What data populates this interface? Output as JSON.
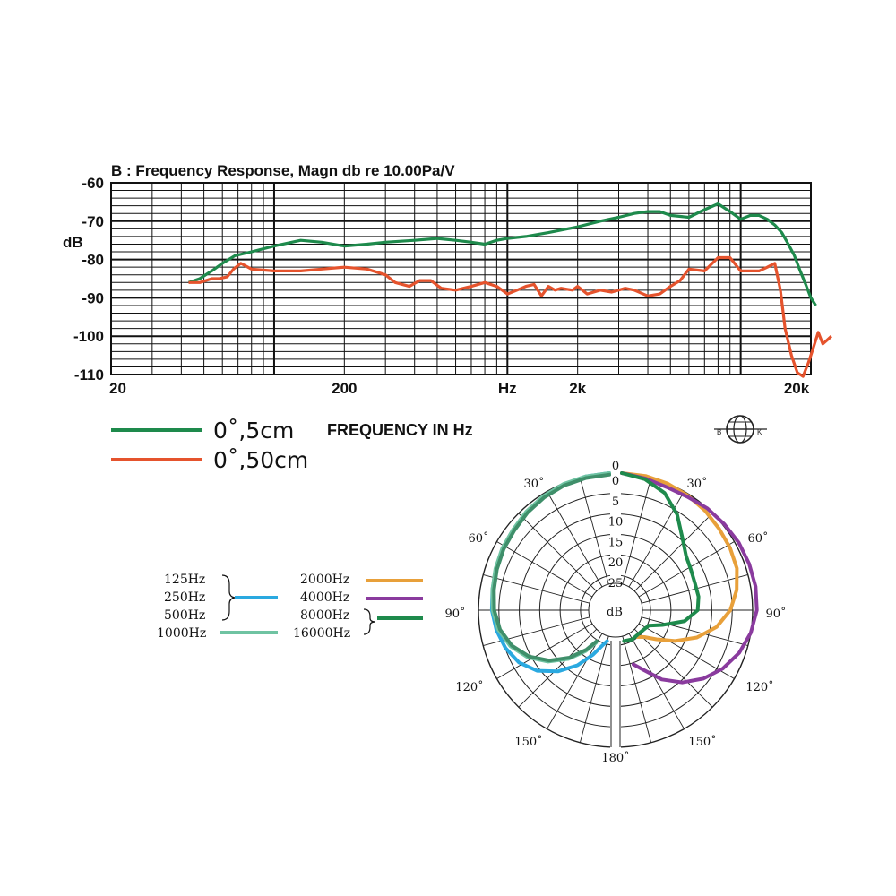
{
  "chart_data": [
    {
      "type": "line",
      "title": "B : Frequency Response, Magn db re 10.00Pa/V",
      "ylabel": "dB",
      "xlabel": "Hz",
      "xscale": "log",
      "xlim": [
        20,
        20000
      ],
      "ylim": [
        -110,
        -60
      ],
      "yticks": [
        "-60",
        "-70",
        "-80",
        "-90",
        "-100",
        "-110"
      ],
      "xticks": [
        {
          "label": "20",
          "value": 20
        },
        {
          "label": "200",
          "value": 200
        },
        {
          "label": "Hz",
          "value": 1000
        },
        {
          "label": "2k",
          "value": 2000
        },
        {
          "label": "20k",
          "value": 20000
        }
      ],
      "axis_note": "FREQUENCY IN Hz",
      "grid": true,
      "series": [
        {
          "name": "0˚,5cm",
          "color": "#1e8a4c",
          "points": [
            [
              43,
              -86
            ],
            [
              48,
              -85
            ],
            [
              54,
              -83
            ],
            [
              60,
              -81
            ],
            [
              68,
              -79
            ],
            [
              80,
              -78
            ],
            [
              100,
              -76.5
            ],
            [
              130,
              -75
            ],
            [
              160,
              -75.5
            ],
            [
              200,
              -76.5
            ],
            [
              250,
              -76
            ],
            [
              300,
              -75.5
            ],
            [
              400,
              -75
            ],
            [
              500,
              -74.5
            ],
            [
              600,
              -75
            ],
            [
              700,
              -75.5
            ],
            [
              800,
              -76
            ],
            [
              900,
              -75
            ],
            [
              1000,
              -74.5
            ],
            [
              1200,
              -74
            ],
            [
              1500,
              -73
            ],
            [
              2000,
              -71.5
            ],
            [
              2500,
              -70
            ],
            [
              3000,
              -69
            ],
            [
              3500,
              -68
            ],
            [
              4000,
              -67.5
            ],
            [
              4500,
              -67.5
            ],
            [
              5000,
              -68.5
            ],
            [
              6000,
              -69
            ],
            [
              7000,
              -67
            ],
            [
              8000,
              -65.5
            ],
            [
              9000,
              -67.5
            ],
            [
              10000,
              -69.5
            ],
            [
              11000,
              -68.5
            ],
            [
              12000,
              -68.5
            ],
            [
              13000,
              -69.5
            ],
            [
              14000,
              -71
            ],
            [
              15000,
              -73
            ],
            [
              16000,
              -76
            ],
            [
              17000,
              -79
            ],
            [
              18000,
              -83
            ],
            [
              19000,
              -86.5
            ],
            [
              20000,
              -90
            ],
            [
              21000,
              -92
            ]
          ]
        },
        {
          "name": "0˚,50cm",
          "color": "#e5532d",
          "points": [
            [
              43,
              -86
            ],
            [
              48,
              -86
            ],
            [
              54,
              -85
            ],
            [
              58,
              -85
            ],
            [
              63,
              -84.5
            ],
            [
              67,
              -82.5
            ],
            [
              72,
              -81
            ],
            [
              80,
              -82.5
            ],
            [
              100,
              -83
            ],
            [
              130,
              -83
            ],
            [
              160,
              -82.5
            ],
            [
              200,
              -82
            ],
            [
              250,
              -82.5
            ],
            [
              300,
              -84
            ],
            [
              330,
              -86
            ],
            [
              380,
              -87
            ],
            [
              420,
              -85.5
            ],
            [
              470,
              -85.5
            ],
            [
              520,
              -87.5
            ],
            [
              600,
              -88
            ],
            [
              700,
              -87
            ],
            [
              800,
              -86
            ],
            [
              900,
              -87
            ],
            [
              1000,
              -89
            ],
            [
              1100,
              -88
            ],
            [
              1200,
              -87
            ],
            [
              1300,
              -86.5
            ],
            [
              1400,
              -89.5
            ],
            [
              1500,
              -87
            ],
            [
              1600,
              -88
            ],
            [
              1700,
              -87.5
            ],
            [
              1900,
              -88
            ],
            [
              2000,
              -87
            ],
            [
              2200,
              -89
            ],
            [
              2500,
              -88
            ],
            [
              2800,
              -88.5
            ],
            [
              3200,
              -87.5
            ],
            [
              3500,
              -88
            ],
            [
              4000,
              -89.5
            ],
            [
              4500,
              -89
            ],
            [
              5000,
              -87
            ],
            [
              5500,
              -85.5
            ],
            [
              6000,
              -82.5
            ],
            [
              7000,
              -83
            ],
            [
              8000,
              -79.5
            ],
            [
              9000,
              -79.5
            ],
            [
              10000,
              -83
            ],
            [
              11000,
              -83
            ],
            [
              12000,
              -83
            ],
            [
              13000,
              -82
            ],
            [
              14000,
              -81
            ],
            [
              14800,
              -88
            ],
            [
              15500,
              -98
            ],
            [
              16500,
              -105
            ],
            [
              17500,
              -109.5
            ],
            [
              18500,
              -110.5
            ],
            [
              19500,
              -107
            ],
            [
              20500,
              -103
            ],
            [
              21500,
              -99
            ],
            [
              22500,
              -102
            ],
            [
              23500,
              -101
            ],
            [
              24500,
              -100
            ]
          ]
        }
      ]
    },
    {
      "type": "polar",
      "rlabel": "dB",
      "rings": [
        "0",
        "5",
        "10",
        "15",
        "20",
        "25"
      ],
      "angle_labels": [
        "0",
        "30˚",
        "60˚",
        "90˚",
        "120˚",
        "150˚",
        "180˚"
      ],
      "series": [
        {
          "name": "125Hz",
          "group": "125Hz 250Hz 500Hz",
          "color": "#2aa9e0",
          "points": [
            [
              0,
              0
            ],
            [
              10,
              0.3
            ],
            [
              20,
              0.8
            ],
            [
              30,
              1.5
            ],
            [
              40,
              2.2
            ],
            [
              50,
              3
            ],
            [
              60,
              3.5
            ],
            [
              70,
              4
            ],
            [
              80,
              4.5
            ],
            [
              90,
              4.8
            ],
            [
              100,
              5.5
            ],
            [
              110,
              6.5
            ],
            [
              120,
              8
            ],
            [
              130,
              10.5
            ],
            [
              140,
              14
            ],
            [
              150,
              18
            ],
            [
              160,
              22
            ],
            [
              170,
              25
            ],
            [
              176,
              26
            ]
          ]
        },
        {
          "name": "1000Hz",
          "color": "#6fc3a2",
          "points": [
            [
              0,
              0
            ],
            [
              10,
              0.3
            ],
            [
              20,
              0.7
            ],
            [
              30,
              1.3
            ],
            [
              40,
              2
            ],
            [
              50,
              2.8
            ],
            [
              60,
              3.3
            ],
            [
              70,
              3.9
            ],
            [
              80,
              4.5
            ],
            [
              90,
              5
            ],
            [
              100,
              6
            ],
            [
              110,
              7.8
            ],
            [
              120,
              10.5
            ],
            [
              130,
              14
            ],
            [
              140,
              18
            ],
            [
              150,
              22
            ],
            [
              158,
              25
            ]
          ]
        },
        {
          "name": "2000Hz",
          "color": "#e8a03a",
          "points": [
            [
              0,
              0
            ],
            [
              10,
              0.2
            ],
            [
              20,
              0.6
            ],
            [
              30,
              1.2
            ],
            [
              40,
              1.8
            ],
            [
              50,
              2.5
            ],
            [
              60,
              3
            ],
            [
              70,
              3.6
            ],
            [
              80,
              5
            ],
            [
              90,
              7
            ],
            [
              100,
              10
            ],
            [
              110,
              14
            ],
            [
              120,
              18.5
            ],
            [
              130,
              22.5
            ],
            [
              140,
              25
            ],
            [
              150,
              26
            ]
          ]
        },
        {
          "name": "4000Hz",
          "color": "#8a3b9e",
          "points": [
            [
              0,
              0
            ],
            [
              10,
              0.8
            ],
            [
              20,
              1.5
            ],
            [
              30,
              1.5
            ],
            [
              40,
              1
            ],
            [
              50,
              0.8
            ],
            [
              60,
              0.5
            ],
            [
              70,
              0.4
            ],
            [
              80,
              0.3
            ],
            [
              90,
              0.5
            ],
            [
              100,
              1.5
            ],
            [
              110,
              3
            ],
            [
              120,
              5
            ],
            [
              130,
              7.5
            ],
            [
              140,
              10.5
            ],
            [
              150,
              14
            ],
            [
              160,
              18
            ],
            [
              168,
              20
            ]
          ]
        },
        {
          "name": "8000Hz",
          "group": "8000Hz 16000Hz",
          "color": "#1e8a4c",
          "points": [
            [
              0,
              0
            ],
            [
              10,
              1
            ],
            [
              20,
              3
            ],
            [
              30,
              6.5
            ],
            [
              40,
              10.5
            ],
            [
              50,
              13
            ],
            [
              60,
              14
            ],
            [
              70,
              14.5
            ],
            [
              80,
              14.5
            ],
            [
              90,
              15
            ],
            [
              100,
              18
            ],
            [
              110,
              23
            ],
            [
              120,
              26
            ],
            [
              140,
              26.5
            ],
            [
              160,
              26
            ],
            [
              176,
              26
            ]
          ]
        }
      ]
    }
  ],
  "polar_legend": {
    "group1": [
      "125Hz",
      "250Hz",
      "500Hz"
    ],
    "single": "1000Hz",
    "right_single": [
      "2000Hz",
      "4000Hz"
    ],
    "group2": [
      "8000Hz",
      "16000Hz"
    ]
  },
  "logo": {
    "left": "B",
    "right": "K"
  }
}
